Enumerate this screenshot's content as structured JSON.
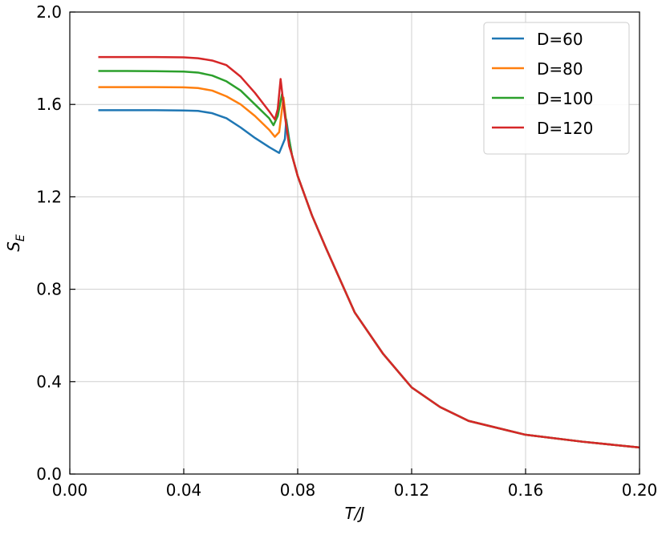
{
  "chart_data": {
    "type": "line",
    "xlabel": "T/J",
    "ylabel": "S",
    "ylabel_sub": "E",
    "xlim": [
      0,
      0.2
    ],
    "ylim": [
      0,
      2
    ],
    "xticks": [
      {
        "value": 0,
        "label": "0.00"
      },
      0.04,
      0.08,
      0.12,
      0.16,
      {
        "value": 0.2,
        "label": "0.20"
      }
    ],
    "yticks": [
      {
        "value": 0,
        "label": "0.0"
      },
      0.4,
      0.8,
      1.2,
      1.6,
      {
        "value": 2,
        "label": "2.0"
      }
    ],
    "grid": true,
    "legend": "upper right",
    "series": [
      {
        "name": "D=60",
        "color": "#1f77b4",
        "x": [
          0.01,
          0.02,
          0.03,
          0.04,
          0.045,
          0.05,
          0.055,
          0.06,
          0.065,
          0.07,
          0.0735,
          0.0755,
          0.076,
          0.077,
          0.078,
          0.08,
          0.085,
          0.09,
          0.1,
          0.11,
          0.12,
          0.13,
          0.14,
          0.16,
          0.18,
          0.2
        ],
        "values": [
          1.575,
          1.575,
          1.575,
          1.574,
          1.572,
          1.562,
          1.54,
          1.5,
          1.455,
          1.415,
          1.39,
          1.45,
          1.535,
          1.45,
          1.38,
          1.29,
          1.12,
          0.976,
          0.7,
          0.52,
          0.375,
          0.29,
          0.23,
          0.17,
          0.14,
          0.115
        ]
      },
      {
        "name": "D=80",
        "color": "#ff7f0e",
        "x": [
          0.01,
          0.02,
          0.03,
          0.04,
          0.045,
          0.05,
          0.055,
          0.06,
          0.065,
          0.07,
          0.072,
          0.0735,
          0.075,
          0.0765,
          0.078,
          0.08,
          0.085,
          0.09,
          0.1,
          0.11,
          0.12,
          0.13,
          0.14,
          0.16,
          0.18,
          0.2
        ],
        "values": [
          1.675,
          1.675,
          1.675,
          1.674,
          1.671,
          1.66,
          1.635,
          1.6,
          1.55,
          1.49,
          1.46,
          1.48,
          1.63,
          1.47,
          1.38,
          1.29,
          1.12,
          0.976,
          0.7,
          0.52,
          0.375,
          0.29,
          0.23,
          0.17,
          0.14,
          0.115
        ]
      },
      {
        "name": "D=100",
        "color": "#2ca02c",
        "x": [
          0.01,
          0.02,
          0.03,
          0.04,
          0.045,
          0.05,
          0.055,
          0.06,
          0.065,
          0.07,
          0.0715,
          0.073,
          0.0745,
          0.0765,
          0.078,
          0.08,
          0.085,
          0.09,
          0.1,
          0.11,
          0.12,
          0.13,
          0.14,
          0.16,
          0.18,
          0.2
        ],
        "values": [
          1.745,
          1.745,
          1.744,
          1.742,
          1.738,
          1.725,
          1.7,
          1.66,
          1.6,
          1.54,
          1.51,
          1.55,
          1.645,
          1.48,
          1.38,
          1.29,
          1.12,
          0.976,
          0.7,
          0.52,
          0.375,
          0.29,
          0.23,
          0.17,
          0.14,
          0.115
        ]
      },
      {
        "name": "D=120",
        "color": "#d62728",
        "x": [
          0.01,
          0.02,
          0.03,
          0.04,
          0.045,
          0.05,
          0.055,
          0.06,
          0.065,
          0.07,
          0.072,
          0.073,
          0.074,
          0.0755,
          0.077,
          0.078,
          0.08,
          0.085,
          0.09,
          0.1,
          0.11,
          0.12,
          0.13,
          0.14,
          0.16,
          0.18,
          0.2
        ],
        "values": [
          1.805,
          1.805,
          1.805,
          1.804,
          1.8,
          1.79,
          1.77,
          1.72,
          1.65,
          1.57,
          1.535,
          1.58,
          1.71,
          1.55,
          1.42,
          1.38,
          1.29,
          1.12,
          0.976,
          0.7,
          0.52,
          0.375,
          0.29,
          0.23,
          0.17,
          0.14,
          0.115
        ]
      }
    ]
  }
}
